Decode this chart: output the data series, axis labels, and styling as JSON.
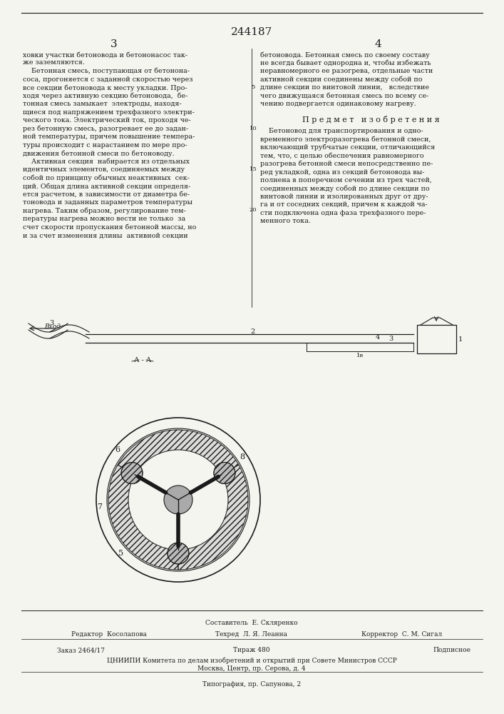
{
  "patent_number": "244187",
  "page_numbers": [
    "3",
    "4"
  ],
  "background_color": "#f5f5f0",
  "text_color": "#1a1a1a",
  "col1_text": [
    "ховки участки бетоновода и бетононасос так-",
    "же заземляются.",
    "    Бетонная смесь, поступающая от бетонона-",
    "соса, прогоняется с заданной скоростью через",
    "все секции бетоновода к месту укладки. Про-",
    "ходя через активную секцию бетоновода,  бе-",
    "тонная смесь замыкает  электроды, находя-",
    "щиеся под напряжением трехфазного электри-",
    "ческого тока. Электрический ток, проходя че-",
    "рез бетонную смесь, разогревает ее до задан-",
    "ной температуры, причем повышение темпера-",
    "туры происходит с нарастанием по мере про-",
    "движения бетонной смеси по бетоноводу.",
    "    Активная секция  набирается из отдельных",
    "идентичных элементов, соединяемых между",
    "собой по принципу обычных неактивных  сек-",
    "ций. Общая длина активной секции определя-",
    "ется расчетом, в зависимости от диаметра бе-",
    "тоновода и заданных параметров температуры",
    "нагрева. Таким образом, регулирование тем-",
    "пературы нагрева можно вести не только  за",
    "счет скорости пропускания бетонной массы, но",
    "и за счет изменения длины  активной секции"
  ],
  "col2_text_lines_top": [
    "бетоновода. Бетонная смесь по своему составу",
    "не всегда бывает однородна и, чтобы избежать",
    "неравномерного ее разогрева, отдельные части",
    "активной секции соединены между собой по",
    "длине секции по винтовой линии,   вследствие",
    "чего движущаяся бетонная смесь по всему се-",
    "чению подвергается одинаковому нагреву."
  ],
  "subject_title": "П р е д м е т   и з о б р е т е н и я",
  "col2_text_lines_bottom": [
    "    Бетоновод для транспортирования и одно-",
    "временного электроразогрева бетонной смеси,",
    "включающий трубчатые секции, отличающийся",
    "тем, что, с целью обеспечения равномерного",
    "разогрева бетонной смеси непосредственно пе-",
    "ред укладкой, одна из секций бетоновода вы-",
    "полнена в поперечном сечении из трех частей,",
    "соединенных между собой по длине секции по",
    "винтовой линии и изолированных друг от дру-",
    "га и от соседних секций, причем к каждой ча-",
    "сти подключена одна фаза трехфазного пере-",
    "менного тока."
  ],
  "line_numbers_col2": [
    "5",
    "10",
    "15",
    "20"
  ],
  "footer": {
    "editor": "Редактор  Косолапова",
    "compiler_label": "Составитель  Е. Скляренко",
    "techred": "Техред  Л. Я. Леанна",
    "corrector": "Корректор  С. М. Сигал",
    "order": "Заказ 2464/17",
    "circulation": "Тираж 480",
    "signed": "Подписное",
    "org": "ЦНИИПИ Комитета по делам изобретений и открытий при Совете Министров СССР",
    "address": "Москва, Центр, пр. Серова, д. 4",
    "typography": "Типография, пр. Сапунова, 2"
  }
}
